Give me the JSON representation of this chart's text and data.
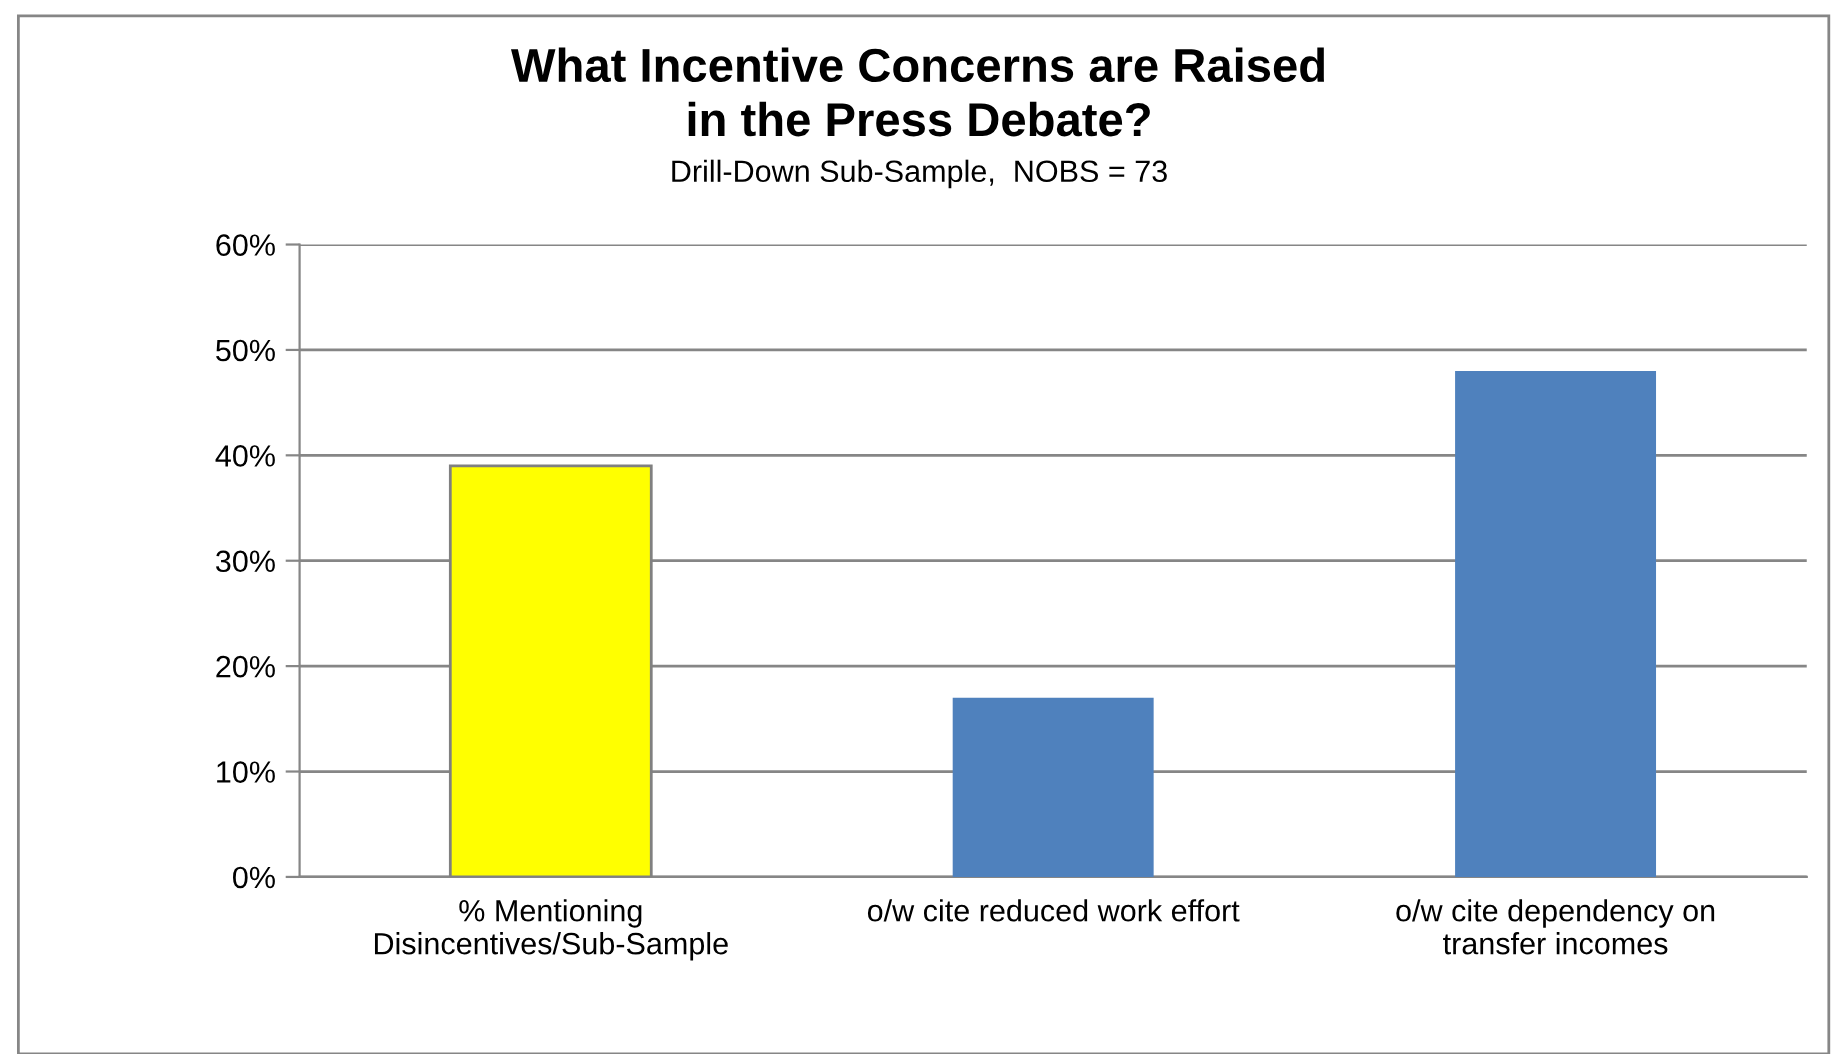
{
  "chart_data": {
    "type": "bar",
    "title": "What Incentive Concerns are Raised\nin the Press Debate?",
    "subtitle": "Drill-Down Sub-Sample,  NOBS = 73",
    "categories": [
      "% Mentioning\nDisincentives/Sub-Sample",
      "o/w cite reduced work effort",
      "o/w cite dependency on\ntransfer incomes"
    ],
    "values": [
      0.39,
      0.17,
      0.48
    ],
    "colors": [
      "#ffff00",
      "#4f81bd",
      "#4f81bd"
    ],
    "ylim": [
      0,
      0.6
    ],
    "yticks": [
      {
        "value": 0,
        "label": "0%"
      },
      {
        "value": 0.1,
        "label": "10%"
      },
      {
        "value": 0.2,
        "label": "20%"
      },
      {
        "value": 0.3,
        "label": "30%"
      },
      {
        "value": 0.4,
        "label": "40%"
      },
      {
        "value": 0.5,
        "label": "50%"
      },
      {
        "value": 0.6,
        "label": "60%"
      }
    ],
    "grid": "y",
    "legend": false
  }
}
